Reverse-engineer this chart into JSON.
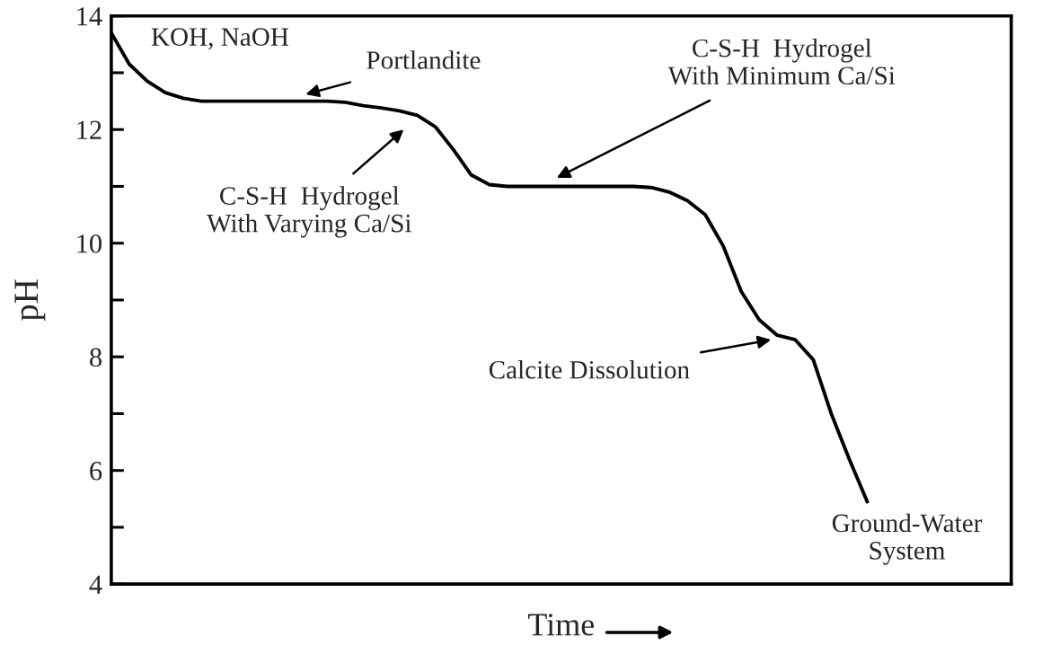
{
  "chart_data": {
    "type": "line",
    "xlabel": "Time",
    "ylabel": "pH",
    "categories": [
      null,
      null,
      null,
      null,
      null,
      null,
      null,
      null,
      null,
      null,
      null,
      null,
      null,
      null,
      null,
      null,
      null,
      null,
      null,
      null,
      null,
      null,
      null,
      null,
      null,
      null,
      null,
      null,
      null,
      null,
      null,
      null,
      null,
      null,
      null,
      null,
      null,
      null,
      null,
      null,
      null,
      null,
      null,
      null,
      null,
      null,
      null,
      null,
      null,
      null,
      null
    ],
    "series": [
      {
        "color": "#000000",
        "values": [
          13.7,
          13.15,
          12.85,
          12.65,
          12.55,
          12.5,
          12.5,
          12.5,
          12.5,
          12.5,
          12.5,
          12.5,
          12.5,
          12.48,
          12.42,
          12.38,
          12.33,
          12.25,
          12.05,
          11.65,
          11.2,
          11.03,
          11.0,
          11.0,
          11.0,
          11.0,
          11.0,
          11.0,
          11.0,
          11.0,
          10.98,
          10.9,
          10.75,
          10.5,
          9.95,
          9.15,
          8.65,
          8.38,
          8.3,
          7.95,
          7.0,
          6.2,
          5.45,
          null,
          null,
          null,
          null,
          null,
          null,
          null,
          null
        ]
      }
    ],
    "ylim": [
      4,
      14
    ],
    "yticks": [
      4,
      {
        "value": 5,
        "label": null
      },
      6,
      {
        "value": 7,
        "label": null
      },
      8,
      {
        "value": 9,
        "label": null
      },
      10,
      {
        "value": 11,
        "label": null
      },
      12,
      {
        "value": 13,
        "label": null
      },
      14
    ],
    "grid": false,
    "legend": false,
    "marker": "none",
    "line_style": "solid",
    "annotations": [
      "KOH, NaOH",
      "Portlandite",
      "C-S-H  Hydrogel\nWith Varying Ca/Si",
      "C-S-H  Hydrogel\nWith Minimum Ca/Si",
      "Calcite Dissolution",
      "Ground-Water\nSystem"
    ]
  }
}
